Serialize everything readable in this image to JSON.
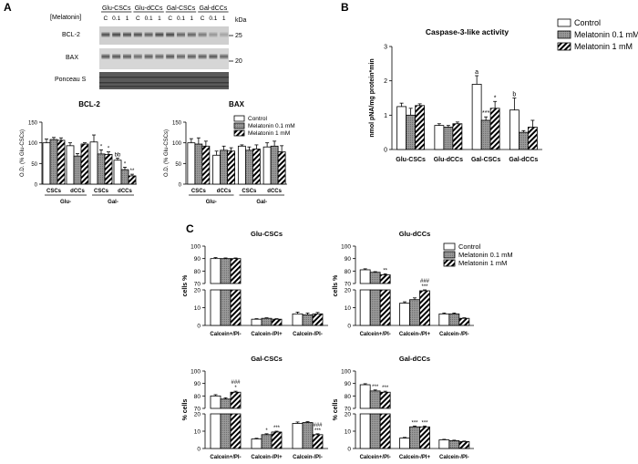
{
  "panels": {
    "A": "A",
    "B": "B",
    "C": "C"
  },
  "blot": {
    "treatment_label": "[Melatonin]",
    "groups": [
      "Glu-CSCs",
      "Glu-dCCs",
      "Gal-CSCs",
      "Gal-dCCs"
    ],
    "lane_labels": [
      "C",
      "0.1",
      "1",
      "C",
      "0.1",
      "1",
      "C",
      "0.1",
      "1",
      "C",
      "0.1",
      "1"
    ],
    "rows": [
      "BCL-2",
      "BAX",
      "Ponceau S"
    ],
    "kda_label": "kDa",
    "markers": [
      "25",
      "20"
    ]
  },
  "legend": {
    "series": [
      "Control",
      "Melatonin 0.1 mM",
      "Melatonin 1 mM"
    ]
  },
  "colors": {
    "control": "#ffffff",
    "mel01": "#8c8c8c",
    "mel1_hatch": "#000000"
  },
  "chart_data": [
    {
      "id": "bcl2",
      "type": "bar",
      "title": "BCL-2",
      "ylabel": "O.D. (% Glu-CSCs)",
      "ylim": [
        0,
        150
      ],
      "yticks": [
        0,
        50,
        100,
        150
      ],
      "categories": [
        "CSCs",
        "dCCs",
        "CSCs",
        "dCCs"
      ],
      "groups": [
        "Glu-",
        "Gal-"
      ],
      "series": [
        {
          "name": "Control",
          "values": [
            100,
            93,
            102,
            58
          ],
          "err": [
            9,
            7,
            17,
            5
          ]
        },
        {
          "name": "Melatonin 0.1 mM",
          "values": [
            108,
            68,
            73,
            35
          ],
          "err": [
            5,
            6,
            10,
            6
          ]
        },
        {
          "name": "Melatonin 1 mM",
          "values": [
            106,
            97,
            72,
            20
          ],
          "err": [
            6,
            3,
            6,
            4
          ]
        }
      ],
      "annotations": [
        {
          "cat": 2,
          "series": 1,
          "text": "*"
        },
        {
          "cat": 2,
          "series": 2,
          "text": "*"
        },
        {
          "cat": 3,
          "series": 0,
          "text": "bb"
        },
        {
          "cat": 3,
          "series": 1,
          "text": "*"
        },
        {
          "cat": 3,
          "series": 2,
          "text": "**"
        }
      ]
    },
    {
      "id": "bax",
      "type": "bar",
      "title": "BAX",
      "ylabel": "O.D. (% Glu-CSCs)",
      "ylim": [
        0,
        150
      ],
      "yticks": [
        0,
        50,
        100,
        150
      ],
      "categories": [
        "CSCs",
        "dCCs",
        "CSCs",
        "dCCs"
      ],
      "groups": [
        "Glu-",
        "Gal-"
      ],
      "series": [
        {
          "name": "Control",
          "values": [
            100,
            70,
            92,
            90
          ],
          "err": [
            10,
            10,
            3,
            10
          ]
        },
        {
          "name": "Melatonin 0.1 mM",
          "values": [
            97,
            82,
            82,
            92
          ],
          "err": [
            15,
            10,
            8,
            12
          ]
        },
        {
          "name": "Melatonin 1 mM",
          "values": [
            92,
            80,
            85,
            78
          ],
          "err": [
            12,
            8,
            10,
            15
          ]
        }
      ],
      "annotations": []
    },
    {
      "id": "caspase",
      "type": "bar",
      "title": "Caspase-3-like activity",
      "ylabel": "nmol pNA/mg protein*min",
      "ylim": [
        0,
        3
      ],
      "yticks": [
        0,
        1,
        2,
        3
      ],
      "categories": [
        "Glu-CSCs",
        "Glu-dCCs",
        "Gal-CSCs",
        "Gal-dCCs"
      ],
      "groups": [],
      "series": [
        {
          "name": "Control",
          "values": [
            1.25,
            0.7,
            1.9,
            1.15
          ],
          "err": [
            0.1,
            0.05,
            0.25,
            0.35
          ]
        },
        {
          "name": "Melatonin 0.1 mM",
          "values": [
            1.0,
            0.65,
            0.85,
            0.5
          ],
          "err": [
            0.2,
            0.05,
            0.1,
            0.05
          ]
        },
        {
          "name": "Melatonin 1 mM",
          "values": [
            1.28,
            0.75,
            1.2,
            0.65
          ],
          "err": [
            0.05,
            0.05,
            0.2,
            0.2
          ]
        }
      ],
      "annotations": [
        {
          "cat": 2,
          "series": 0,
          "text": "a"
        },
        {
          "cat": 2,
          "series": 1,
          "text": "***"
        },
        {
          "cat": 2,
          "series": 2,
          "text": "*"
        },
        {
          "cat": 3,
          "series": 0,
          "text": "b"
        }
      ]
    },
    {
      "id": "glu_cscs",
      "type": "bar",
      "title": "Glu-CSCs",
      "ylabel": "cells %",
      "broken_axis": true,
      "lower_ylim": [
        0,
        20
      ],
      "lower_yticks": [
        0,
        10,
        20
      ],
      "upper_ylim": [
        70,
        100
      ],
      "upper_yticks": [
        70,
        80,
        90,
        100
      ],
      "categories": [
        "Calcein+/PI-",
        "Calcein-/PI+",
        "Calcein-/PI-"
      ],
      "series": [
        {
          "name": "Control",
          "values": [
            90,
            3.5,
            6.5
          ],
          "err": [
            0.8,
            0.3,
            1
          ]
        },
        {
          "name": "Melatonin 0.1 mM",
          "values": [
            90,
            4,
            6
          ],
          "err": [
            0.5,
            0.3,
            1
          ]
        },
        {
          "name": "Melatonin 1 mM",
          "values": [
            90,
            3.5,
            6.5
          ],
          "err": [
            0.5,
            0.3,
            0.8
          ]
        }
      ],
      "annotations": []
    },
    {
      "id": "glu_dccs",
      "type": "bar",
      "title": "Glu-dCCs",
      "ylabel": "cells %",
      "broken_axis": true,
      "lower_ylim": [
        0,
        20
      ],
      "lower_yticks": [
        0,
        10,
        20
      ],
      "upper_ylim": [
        70,
        100
      ],
      "upper_yticks": [
        70,
        80,
        90,
        100
      ],
      "categories": [
        "Calcein+/PI-",
        "Calcein-/PI+",
        "Calcein-/PI-"
      ],
      "series": [
        {
          "name": "Control",
          "values": [
            81,
            12.5,
            6.5
          ],
          "err": [
            0.8,
            0.8,
            0.5
          ]
        },
        {
          "name": "Melatonin 0.1 mM",
          "values": [
            79,
            14.5,
            6.5
          ],
          "err": [
            0.5,
            1,
            0.5
          ]
        },
        {
          "name": "Melatonin 1 mM",
          "values": [
            77,
            19.5,
            4
          ],
          "err": [
            0.8,
            0.5,
            0.3
          ]
        }
      ],
      "annotations": [
        {
          "cat": 0,
          "series": 2,
          "text": "**"
        },
        {
          "cat": 1,
          "series": 2,
          "text": "***"
        },
        {
          "cat": 1,
          "series": 2,
          "text": "###"
        }
      ]
    },
    {
      "id": "gal_cscs",
      "type": "bar",
      "title": "Gal-CSCs",
      "ylabel": "% cells",
      "broken_axis": true,
      "lower_ylim": [
        0,
        20
      ],
      "lower_yticks": [
        0,
        10,
        20
      ],
      "upper_ylim": [
        70,
        100
      ],
      "upper_yticks": [
        70,
        80,
        90,
        100
      ],
      "categories": [
        "Calcein+/PI-",
        "Calcein-/PI+",
        "Calcein-/PI-"
      ],
      "series": [
        {
          "name": "Control",
          "values": [
            80,
            5.5,
            14.5
          ],
          "err": [
            1,
            0.4,
            0.8
          ]
        },
        {
          "name": "Melatonin 0.1 mM",
          "values": [
            77.5,
            8,
            15
          ],
          "err": [
            1,
            0.5,
            0.5
          ]
        },
        {
          "name": "Melatonin 1 mM",
          "values": [
            83,
            9.5,
            8
          ],
          "err": [
            0.8,
            0.5,
            0.5
          ]
        }
      ],
      "annotations": [
        {
          "cat": 0,
          "series": 2,
          "text": "*"
        },
        {
          "cat": 0,
          "series": 2,
          "text": "###"
        },
        {
          "cat": 1,
          "series": 1,
          "text": "*"
        },
        {
          "cat": 1,
          "series": 2,
          "text": "***"
        },
        {
          "cat": 2,
          "series": 2,
          "text": "***"
        },
        {
          "cat": 2,
          "series": 2,
          "text": "###"
        }
      ]
    },
    {
      "id": "gal_dccs",
      "type": "bar",
      "title": "Gal-dCCs",
      "ylabel": "% cells",
      "broken_axis": true,
      "lower_ylim": [
        0,
        20
      ],
      "lower_yticks": [
        0,
        10,
        20
      ],
      "upper_ylim": [
        70,
        100
      ],
      "upper_yticks": [
        70,
        80,
        90,
        100
      ],
      "categories": [
        "Calcein+/PI-",
        "Calcein-/PI+",
        "Calcein-/PI-"
      ],
      "series": [
        {
          "name": "Control",
          "values": [
            89,
            6,
            5
          ],
          "err": [
            0.8,
            0.4,
            0.3
          ]
        },
        {
          "name": "Melatonin 0.1 mM",
          "values": [
            84,
            12.5,
            4.5
          ],
          "err": [
            0.8,
            0.5,
            0.3
          ]
        },
        {
          "name": "Melatonin 1 mM",
          "values": [
            83,
            12.5,
            4
          ],
          "err": [
            0.8,
            0.5,
            0.3
          ]
        }
      ],
      "annotations": [
        {
          "cat": 0,
          "series": 1,
          "text": "***"
        },
        {
          "cat": 0,
          "series": 2,
          "text": "***"
        },
        {
          "cat": 1,
          "series": 1,
          "text": "***"
        },
        {
          "cat": 1,
          "series": 2,
          "text": "***"
        }
      ]
    }
  ]
}
